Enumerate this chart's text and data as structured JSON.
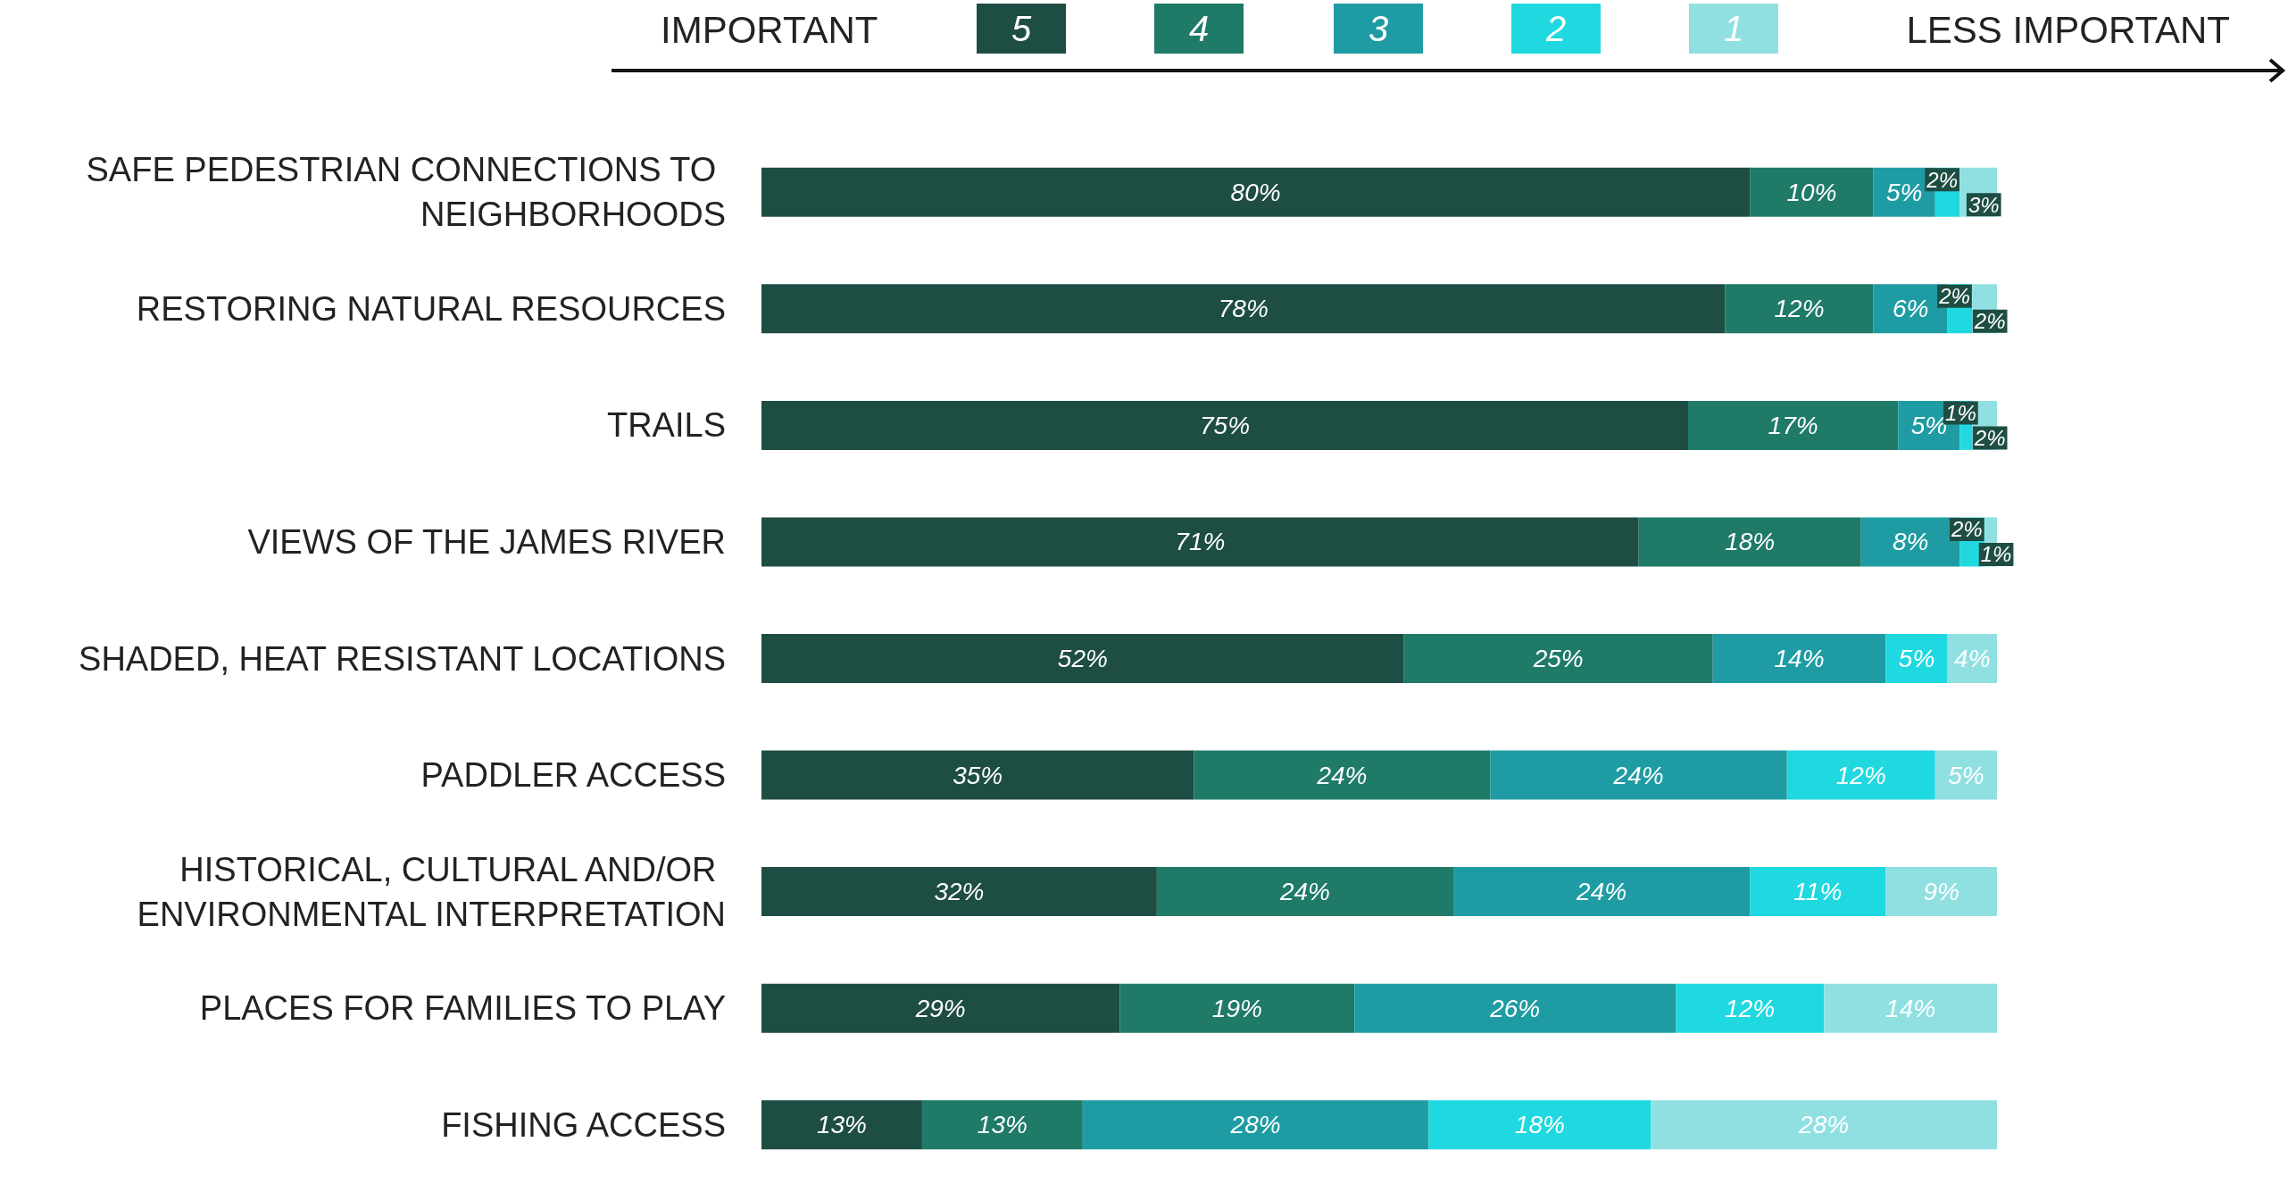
{
  "chart_data": {
    "type": "bar",
    "orientation": "horizontal",
    "stacked": true,
    "legend": "top",
    "categories": [
      "SAFE PEDESTRIAN CONNECTIONS TO NEIGHBORHOODS",
      "RESTORING NATURAL RESOURCES",
      "TRAILS",
      "VIEWS OF THE JAMES RIVER",
      "SHADED, HEAT RESISTANT LOCATIONS",
      "PADDLER ACCESS",
      "HISTORICAL, CULTURAL AND/OR ENVIRONMENTAL INTERPRETATION",
      "PLACES FOR FAMILIES TO PLAY",
      "FISHING ACCESS"
    ],
    "xlim": [
      0,
      100
    ],
    "annotations": [
      "IMPORTANT",
      "LESS IMPORTANT"
    ],
    "series": [
      {
        "name": "5",
        "color": "#1e4d43",
        "values": [
          80,
          78,
          75,
          71,
          52,
          35,
          32,
          29,
          13
        ],
        "value_labels": [
          "80%",
          "78%",
          "75%",
          "71%",
          "52%",
          "35%",
          "32%",
          "29%",
          "13%"
        ]
      },
      {
        "name": "4",
        "color": "#1f7a68",
        "values": [
          10,
          12,
          17,
          18,
          25,
          24,
          24,
          19,
          13
        ],
        "value_labels": [
          "10%",
          "12%",
          "17%",
          "18%",
          "25%",
          "24%",
          "24%",
          "19%",
          "13%"
        ]
      },
      {
        "name": "3",
        "color": "#1f9ca3",
        "values": [
          5,
          6,
          5,
          8,
          14,
          24,
          24,
          26,
          28
        ],
        "value_labels": [
          "5%",
          "6%",
          "5%",
          "8%",
          "14%",
          "24%",
          "24%",
          "26%",
          "28%"
        ]
      },
      {
        "name": "2",
        "color": "#20d8e0",
        "values": [
          2,
          2,
          1,
          2,
          5,
          12,
          11,
          12,
          18
        ],
        "value_labels": [
          "2%",
          "2%",
          "1%",
          "2%",
          "5%",
          "12%",
          "11%",
          "12%",
          "18%"
        ]
      },
      {
        "name": "1",
        "color": "#90e0e2",
        "values": [
          3,
          2,
          2,
          1,
          4,
          5,
          9,
          14,
          28
        ],
        "value_labels": [
          "3%",
          "2%",
          "2%",
          "1%",
          "4%",
          "5%",
          "9%",
          "14%",
          "28%"
        ]
      }
    ]
  }
}
